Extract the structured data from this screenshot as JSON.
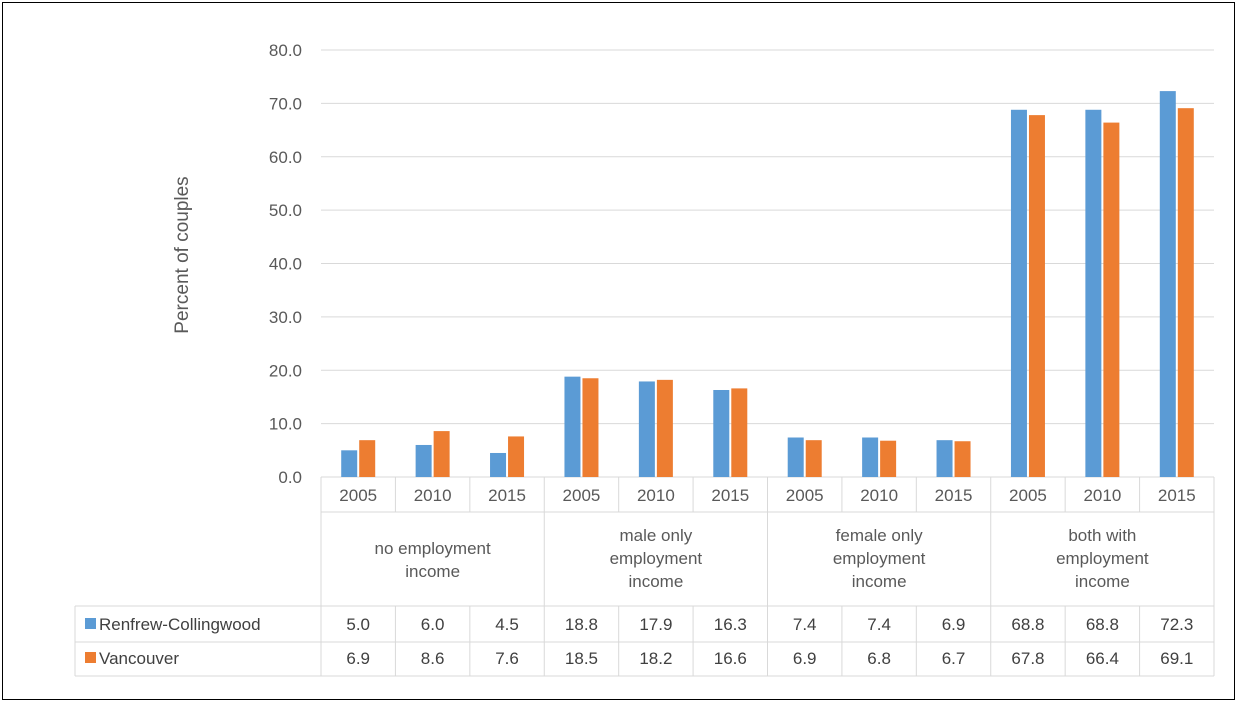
{
  "chart_data": {
    "type": "bar",
    "ylabel": "Percent of couples",
    "ylim": [
      0,
      80
    ],
    "yticks": [
      "0.0",
      "10.0",
      "20.0",
      "30.0",
      "40.0",
      "50.0",
      "60.0",
      "70.0",
      "80.0"
    ],
    "grid": true,
    "legend": "table-left",
    "groups": [
      {
        "label": [
          "no employment",
          "income"
        ],
        "years": [
          "2005",
          "2010",
          "2015"
        ]
      },
      {
        "label": [
          "male only",
          "employment",
          "income"
        ],
        "years": [
          "2005",
          "2010",
          "2015"
        ]
      },
      {
        "label": [
          "female only",
          "employment",
          "income"
        ],
        "years": [
          "2005",
          "2010",
          "2015"
        ]
      },
      {
        "label": [
          "both with",
          "employment",
          "income"
        ],
        "years": [
          "2005",
          "2010",
          "2015"
        ]
      }
    ],
    "series": [
      {
        "name": "Renfrew-Collingwood",
        "color": "#5b9bd5",
        "values": [
          5.0,
          6.0,
          4.5,
          18.8,
          17.9,
          16.3,
          7.4,
          7.4,
          6.9,
          68.8,
          68.8,
          72.3
        ],
        "labels": [
          "5.0",
          "6.0",
          "4.5",
          "18.8",
          "17.9",
          "16.3",
          "7.4",
          "7.4",
          "6.9",
          "68.8",
          "68.8",
          "72.3"
        ]
      },
      {
        "name": "Vancouver",
        "color": "#ed7d31",
        "values": [
          6.9,
          8.6,
          7.6,
          18.5,
          18.2,
          16.6,
          6.9,
          6.8,
          6.7,
          67.8,
          66.4,
          69.1
        ],
        "labels": [
          "6.9",
          "8.6",
          "7.6",
          "18.5",
          "18.2",
          "16.6",
          "6.9",
          "6.8",
          "6.7",
          "67.8",
          "66.4",
          "69.1"
        ]
      }
    ]
  }
}
